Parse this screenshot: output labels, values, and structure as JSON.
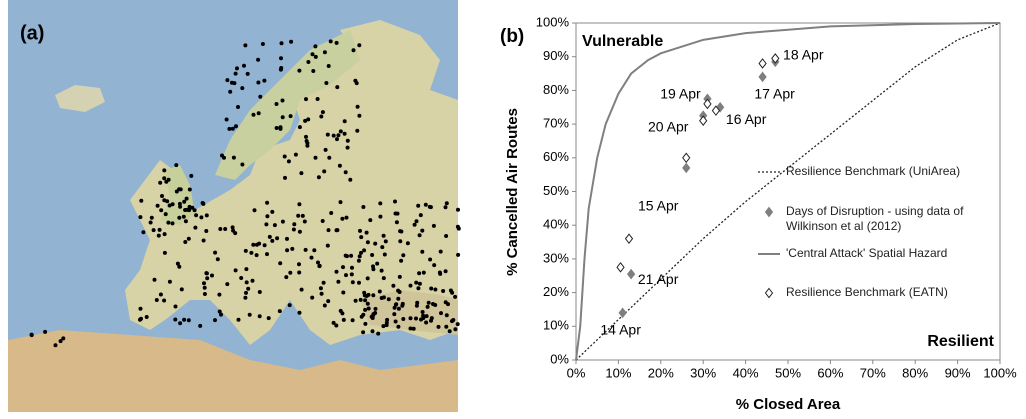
{
  "map": {
    "label": "(a)"
  },
  "chart_data": {
    "type": "scatter",
    "panel_label": "(b)",
    "x_label": "% Closed Area",
    "y_label": "% Cancelled Air Routes",
    "annotations": [
      "Vulnerable",
      "Resilient"
    ],
    "xlim": [
      0,
      100
    ],
    "ylim": [
      0,
      100
    ],
    "xticks": [
      {
        "value": 0,
        "label": "0%"
      },
      {
        "value": 10,
        "label": "10%"
      },
      {
        "value": 20,
        "label": "20%"
      },
      {
        "value": 30,
        "label": "30%"
      },
      {
        "value": 40,
        "label": "40%"
      },
      {
        "value": 50,
        "label": "50%"
      },
      {
        "value": 60,
        "label": "60%"
      },
      {
        "value": 70,
        "label": "70%"
      },
      {
        "value": 80,
        "label": "80%"
      },
      {
        "value": 90,
        "label": "90%"
      },
      {
        "value": 100,
        "label": "100%"
      }
    ],
    "yticks": [
      {
        "value": 0,
        "label": "0%"
      },
      {
        "value": 10,
        "label": "10%"
      },
      {
        "value": 20,
        "label": "20%"
      },
      {
        "value": 30,
        "label": "30%"
      },
      {
        "value": 40,
        "label": "40%"
      },
      {
        "value": 50,
        "label": "50%"
      },
      {
        "value": 60,
        "label": "60%"
      },
      {
        "value": 70,
        "label": "70%"
      },
      {
        "value": 80,
        "label": "80%"
      },
      {
        "value": 90,
        "label": "90%"
      },
      {
        "value": 100,
        "label": "100%"
      }
    ],
    "series": [
      {
        "name": "Resilience Benchmark (UniArea)",
        "style": "dotted-line",
        "color": "#222222",
        "x": [
          0,
          10,
          20,
          30,
          40,
          50,
          60,
          70,
          80,
          90,
          100
        ],
        "values": [
          0,
          12,
          24,
          36,
          47,
          57,
          67,
          77,
          87,
          95,
          100
        ]
      },
      {
        "name": "Days of Disruption - using data of Wilkinson et al (2012)",
        "style": "filled-diamond",
        "color": "#7f7f7f",
        "x": [
          11,
          13,
          26,
          30,
          31,
          34,
          44,
          47
        ],
        "values": [
          14,
          25.5,
          57,
          72.5,
          77.5,
          75,
          84,
          88.5
        ],
        "point_labels": [
          "14 Apr",
          "21 Apr",
          "15 Apr",
          "20 Apr",
          "19 Apr",
          "16 Apr",
          "17 Apr",
          "18 Apr"
        ]
      },
      {
        "name": "'Central Attack' Spatial Hazard",
        "style": "solid-line",
        "color": "#808080",
        "x": [
          0,
          1,
          2,
          3,
          5,
          7,
          10,
          13,
          17,
          20,
          25,
          30,
          35,
          40,
          50,
          60,
          80,
          100
        ],
        "values": [
          0,
          10,
          30,
          45,
          60,
          70,
          79,
          85,
          89,
          91,
          93,
          95,
          96,
          97,
          98,
          99,
          99.7,
          100
        ]
      },
      {
        "name": "Resilience Benchmark (EATN)",
        "style": "open-diamond",
        "color": "#555555",
        "x": [
          10.5,
          12.5,
          26,
          30,
          31,
          33,
          44,
          47
        ],
        "values": [
          27.5,
          36,
          60,
          71,
          76,
          74,
          88,
          89.5
        ]
      }
    ]
  }
}
